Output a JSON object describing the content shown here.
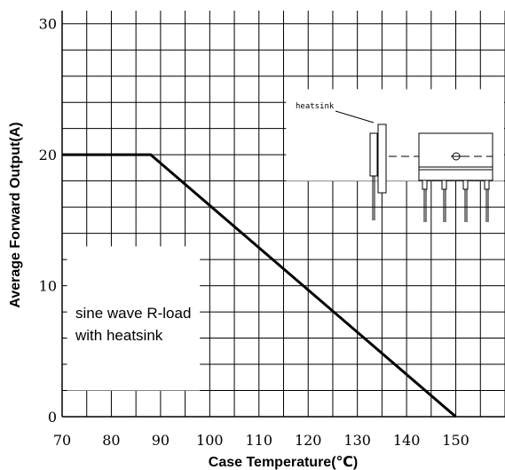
{
  "chart_data": {
    "type": "line",
    "xlabel": "Case Temperature(℃)",
    "ylabel": "Average Forward Output(A)",
    "xlim": [
      70,
      160
    ],
    "ylim": [
      0,
      31
    ],
    "xticks": [
      70,
      80,
      90,
      100,
      110,
      120,
      130,
      140,
      150
    ],
    "yticks": [
      0,
      10,
      20,
      30
    ],
    "grid": true,
    "series": [
      {
        "x": [
          70,
          88,
          150
        ],
        "y": [
          20,
          20,
          0
        ]
      }
    ],
    "annotations": [
      "sine wave R-load",
      "with heatsink"
    ],
    "inset": {
      "label": "heatsink"
    }
  }
}
